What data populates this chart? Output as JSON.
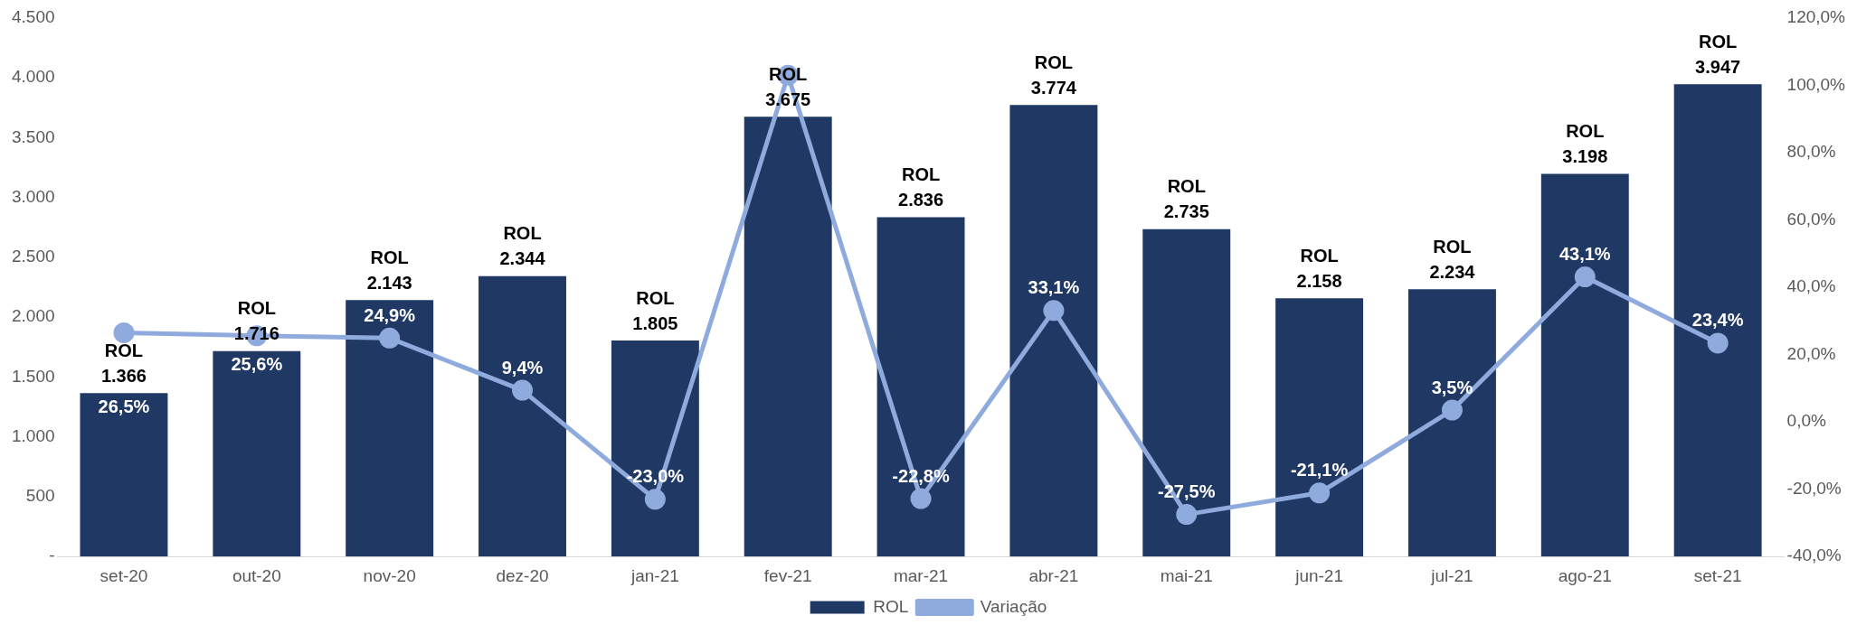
{
  "chart_data": {
    "type": "bar",
    "categories": [
      "set-20",
      "out-20",
      "nov-20",
      "dez-20",
      "jan-21",
      "fev-21",
      "mar-21",
      "abr-21",
      "mai-21",
      "jun-21",
      "jul-21",
      "ago-21",
      "set-21"
    ],
    "series": [
      {
        "name": "ROL",
        "color": "#203864",
        "values": [
          1366,
          1716,
          2143,
          2344,
          1805,
          3675,
          2836,
          3774,
          2735,
          2158,
          2234,
          3198,
          3947
        ],
        "value_labels": [
          "1.366",
          "1.716",
          "2.143",
          "2.344",
          "1.805",
          "3.675",
          "2.836",
          "3.774",
          "2.735",
          "2.158",
          "2.234",
          "3.198",
          "3.947"
        ]
      },
      {
        "name": "Variação",
        "type": "line",
        "axis": "y2",
        "color": "#8faadc",
        "values": [
          26.5,
          25.6,
          24.9,
          9.4,
          -23.0,
          103,
          -22.8,
          33.1,
          -27.5,
          -21.1,
          3.5,
          43.1,
          23.4
        ],
        "value_labels": [
          "26,5%",
          "25,6%",
          "24,9%",
          "9,4%",
          "-23,0%",
          null,
          "-22,8%",
          "33,1%",
          "-27,5%",
          "-21,1%",
          "3,5%",
          "43,1%",
          "23,4%"
        ]
      }
    ],
    "ylim": [
      0,
      4500
    ],
    "yticks": [
      {
        "value": 0,
        "label": "-"
      },
      500,
      {
        "value": 1000,
        "label": "1.000"
      },
      {
        "value": 1500,
        "label": "1.500"
      },
      {
        "value": 2000,
        "label": "2.000"
      },
      {
        "value": 2500,
        "label": "2.500"
      },
      {
        "value": 3000,
        "label": "3.000"
      },
      {
        "value": 3500,
        "label": "3.500"
      },
      {
        "value": 4000,
        "label": "4.000"
      },
      {
        "value": 4500,
        "label": "4.500"
      }
    ],
    "y2lim": [
      -40,
      120
    ],
    "y2ticks": [
      {
        "value": -40,
        "label": "-40,0%"
      },
      {
        "value": -20,
        "label": "-20,0%"
      },
      {
        "value": 0,
        "label": "0,0%"
      },
      {
        "value": 20,
        "label": "20,0%"
      },
      {
        "value": 40,
        "label": "40,0%"
      },
      {
        "value": 60,
        "label": "60,0%"
      },
      {
        "value": 80,
        "label": "80,0%"
      },
      {
        "value": 100,
        "label": "100,0%"
      },
      {
        "value": 120,
        "label": "120,0%"
      }
    ],
    "grid": false,
    "legend": "bottom",
    "marker": "circle",
    "line_style": "solid"
  }
}
